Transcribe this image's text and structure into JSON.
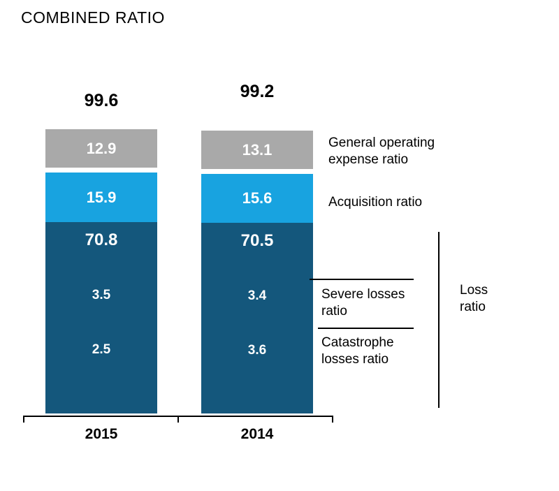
{
  "title": "COMBINED RATIO",
  "chart_data": {
    "type": "bar",
    "stacked": true,
    "orientation": "vertical",
    "categories": [
      "2015",
      "2014"
    ],
    "totals": [
      "99.6",
      "99.2"
    ],
    "series": [
      {
        "name": "General operating expense ratio",
        "values": [
          "12.9",
          "13.1"
        ],
        "color": "#A9A9A9",
        "position": "top"
      },
      {
        "name": "Acquisition ratio",
        "values": [
          "15.9",
          "15.6"
        ],
        "color": "#18A3E0",
        "position": "middle"
      },
      {
        "name": "Loss ratio",
        "values": [
          "70.8",
          "70.5"
        ],
        "color": "#14577C",
        "position": "bottom",
        "sub_components": [
          {
            "name": "Severe losses ratio",
            "values": [
              "3.5",
              "3.4"
            ]
          },
          {
            "name": "Catastrophe losses ratio",
            "values": [
              "2.5",
              "3.6"
            ]
          }
        ]
      }
    ],
    "grid": false,
    "legend_position": "right",
    "ylim": [
      0,
      100
    ]
  },
  "labels": {
    "general_operating": "General operating expense ratio",
    "acquisition": "Acquisition ratio",
    "severe": "Severe losses ratio",
    "catastrophe": "Catastrophe losses ratio",
    "loss": "Loss ratio"
  },
  "colors": {
    "gray_segment": "#A9A9A9",
    "light_blue_segment": "#18A3E0",
    "dark_blue_segment": "#14577C",
    "text": "#000000",
    "segment_text": "#FFFFFF",
    "background": "#FFFFFF"
  }
}
